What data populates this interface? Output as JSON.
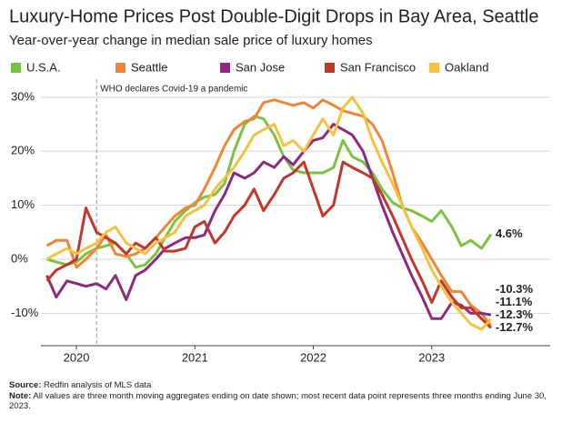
{
  "chart_data": {
    "type": "line",
    "title": "Luxury-Home Prices Post Double-Digit Drops in Bay Area, Seattle",
    "subtitle": "Year-over-year change in median sale price of luxury homes",
    "annotation": {
      "text": "WHO declares Covid-19 a pandemic",
      "x": 2020.17
    },
    "x": [
      2019.75,
      2019.83,
      2019.92,
      2020,
      2020.08,
      2020.17,
      2020.25,
      2020.33,
      2020.42,
      2020.5,
      2020.58,
      2020.67,
      2020.75,
      2020.83,
      2020.92,
      2021,
      2021.08,
      2021.17,
      2021.25,
      2021.33,
      2021.42,
      2021.5,
      2021.58,
      2021.67,
      2021.75,
      2021.83,
      2021.92,
      2022,
      2022.08,
      2022.17,
      2022.25,
      2022.33,
      2022.42,
      2022.5,
      2022.58,
      2022.67,
      2022.75,
      2022.83,
      2022.92,
      2023,
      2023.08,
      2023.17,
      2023.25,
      2023.33,
      2023.42,
      2023.5
    ],
    "xlim": [
      2019.7,
      2024.0
    ],
    "xticks": [
      2020,
      2021,
      2022,
      2023
    ],
    "ylim": [
      -16,
      32
    ],
    "yticks": [
      {
        "value": 30,
        "label": "30%"
      },
      {
        "value": 20,
        "label": "20%"
      },
      {
        "value": 10,
        "label": "10%"
      },
      {
        "value": 0,
        "label": "0%"
      },
      {
        "value": -10,
        "label": "-10%"
      }
    ],
    "grid": true,
    "series": [
      {
        "name": "U.S.A.",
        "color": "#7cc242",
        "values": [
          0,
          -0.5,
          -1,
          -0.5,
          1,
          2,
          2.5,
          3,
          1,
          -1.5,
          -1,
          1,
          4,
          7,
          9,
          10.5,
          11.5,
          12,
          14,
          20,
          25,
          26.5,
          26,
          23,
          19,
          16.5,
          16,
          16,
          16,
          17,
          22,
          19,
          18,
          16,
          13,
          10.5,
          9.5,
          9,
          8,
          7,
          9,
          6,
          2.5,
          3.5,
          2,
          4.6
        ],
        "value_labels": [
          null,
          null,
          null,
          null,
          null,
          null,
          null,
          null,
          null,
          null,
          null,
          null,
          null,
          null,
          null,
          null,
          null,
          null,
          null,
          null,
          null,
          null,
          null,
          null,
          null,
          null,
          null,
          null,
          null,
          null,
          null,
          null,
          null,
          null,
          null,
          null,
          null,
          null,
          null,
          null,
          null,
          null,
          null,
          null,
          null,
          "4.6%"
        ]
      },
      {
        "name": "Seattle",
        "color": "#ee8637",
        "values": [
          2.5,
          3.5,
          3.5,
          -1.5,
          0,
          2,
          4.5,
          1,
          0.5,
          1,
          2,
          4,
          6,
          8,
          9.5,
          10,
          13,
          17,
          21,
          24,
          25.5,
          26,
          29,
          29.5,
          29,
          28.5,
          29,
          28,
          29.5,
          28.5,
          27.5,
          27,
          26.5,
          25,
          22,
          16,
          10,
          6,
          3,
          0,
          -3,
          -6,
          -6,
          -8.5,
          -10,
          -12.3
        ],
        "value_labels": [
          null,
          null,
          null,
          null,
          null,
          null,
          null,
          null,
          null,
          null,
          null,
          null,
          null,
          null,
          null,
          null,
          null,
          null,
          null,
          null,
          null,
          null,
          null,
          null,
          null,
          null,
          null,
          null,
          null,
          null,
          null,
          null,
          null,
          null,
          null,
          null,
          null,
          null,
          null,
          null,
          null,
          null,
          null,
          null,
          null,
          "-12.3%"
        ]
      },
      {
        "name": "San Jose",
        "color": "#8c2b7e",
        "values": [
          -3,
          -7,
          -4,
          -4.5,
          -5,
          -4.5,
          -5.5,
          -3,
          -7.5,
          -3,
          -2,
          0,
          2,
          3,
          4,
          4,
          4.5,
          9,
          12,
          16,
          15,
          16,
          18,
          17,
          19,
          17.5,
          20,
          22,
          22.5,
          25,
          24,
          23,
          20,
          15,
          10,
          5,
          1,
          -3,
          -7,
          -11,
          -11,
          -8,
          -8.5,
          -10,
          -10,
          -10.3
        ],
        "value_labels": [
          null,
          null,
          null,
          null,
          null,
          null,
          null,
          null,
          null,
          null,
          null,
          null,
          null,
          null,
          null,
          null,
          null,
          null,
          null,
          null,
          null,
          null,
          null,
          null,
          null,
          null,
          null,
          null,
          null,
          null,
          null,
          null,
          null,
          null,
          null,
          null,
          null,
          null,
          null,
          null,
          null,
          null,
          null,
          null,
          null,
          "-10.3%"
        ]
      },
      {
        "name": "San Francisco",
        "color": "#c2372a",
        "values": [
          -4,
          -2,
          -1,
          0,
          9.5,
          5,
          4,
          3,
          1,
          3,
          2,
          4,
          1.5,
          1.5,
          2,
          6,
          7,
          3,
          5,
          8,
          10,
          13,
          9,
          12,
          15,
          16,
          18,
          13,
          8,
          10,
          18,
          17,
          16,
          15,
          12,
          8,
          4,
          0,
          -4,
          -8,
          -4,
          -7,
          -9,
          -9,
          -11,
          -12.7
        ],
        "value_labels": [
          null,
          null,
          null,
          null,
          null,
          null,
          null,
          null,
          null,
          null,
          null,
          null,
          null,
          null,
          null,
          null,
          null,
          null,
          null,
          null,
          null,
          null,
          null,
          null,
          null,
          null,
          null,
          null,
          null,
          null,
          null,
          null,
          null,
          null,
          null,
          null,
          null,
          null,
          null,
          null,
          null,
          null,
          null,
          null,
          null,
          "-12.7%"
        ]
      },
      {
        "name": "Oakland",
        "color": "#f5c143",
        "values": [
          0,
          1,
          2,
          1,
          2,
          3,
          5,
          6,
          3,
          2,
          1,
          3,
          4,
          5,
          8,
          9,
          10,
          13,
          15,
          17,
          20,
          23,
          24,
          25,
          21,
          22,
          20,
          23,
          26,
          23,
          28,
          30,
          27,
          22,
          18,
          14,
          10,
          6,
          2,
          -2,
          -5,
          -8,
          -10,
          -12,
          -13,
          -11.1
        ],
        "value_labels": [
          null,
          null,
          null,
          null,
          null,
          null,
          null,
          null,
          null,
          null,
          null,
          null,
          null,
          null,
          null,
          null,
          null,
          null,
          null,
          null,
          null,
          null,
          null,
          null,
          null,
          null,
          null,
          null,
          null,
          null,
          null,
          null,
          null,
          null,
          null,
          null,
          null,
          null,
          null,
          null,
          null,
          null,
          null,
          null,
          null,
          "-11.1%"
        ]
      }
    ],
    "source": {
      "label": "Source:",
      "text": "Redfin analysis of MLS data"
    },
    "note": {
      "label": "Note:",
      "text": "All values are three month moving aggregates ending on date shown; most recent data point represents three months ending June 30, 2023."
    }
  }
}
